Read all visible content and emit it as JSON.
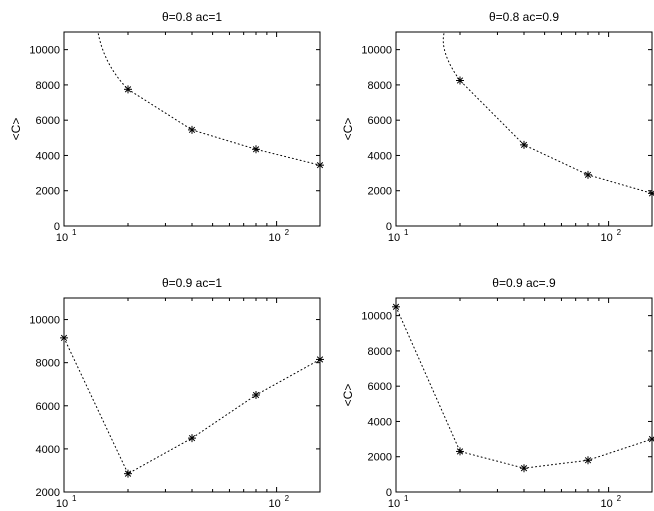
{
  "chart_data": [
    {
      "type": "scatter",
      "title": "θ=0.8 ac=1",
      "ylabel": "<C>",
      "xlabel": "",
      "xscale": "log",
      "xlim": [
        10,
        160
      ],
      "ylim": [
        0,
        11000
      ],
      "yticks": [
        0,
        2000,
        4000,
        6000,
        8000,
        10000
      ],
      "xtick_labels": [
        {
          "value": 10,
          "base": "10",
          "exp": "1"
        },
        {
          "value": 100,
          "base": "10",
          "exp": "2"
        }
      ],
      "series": [
        {
          "style": "dotted line with asterisk markers",
          "x": [
            20,
            40,
            80,
            160
          ],
          "y": [
            7750,
            5450,
            4350,
            3450
          ],
          "curve_start": {
            "x": 14.5,
            "y": 10900
          }
        }
      ]
    },
    {
      "type": "scatter",
      "title": "θ=0.8 ac=0.9",
      "ylabel": "<C>",
      "xlabel": "",
      "xscale": "log",
      "xlim": [
        10,
        160
      ],
      "ylim": [
        0,
        11000
      ],
      "yticks": [
        0,
        2000,
        4000,
        6000,
        8000,
        10000
      ],
      "xtick_labels": [
        {
          "value": 10,
          "base": "10",
          "exp": "1"
        },
        {
          "value": 100,
          "base": "10",
          "exp": "2"
        }
      ],
      "series": [
        {
          "style": "dotted line with asterisk markers",
          "x": [
            20,
            40,
            80,
            160
          ],
          "y": [
            8250,
            4600,
            2900,
            1850
          ],
          "curve_start": {
            "x": 16.8,
            "y": 10900
          }
        }
      ]
    },
    {
      "type": "scatter",
      "title": "θ=0.9 ac=1",
      "ylabel": "",
      "xlabel": "",
      "xscale": "log",
      "xlim": [
        10,
        160
      ],
      "ylim": [
        2000,
        11000
      ],
      "yticks": [
        2000,
        4000,
        6000,
        8000,
        10000
      ],
      "xtick_labels": [
        {
          "value": 10,
          "base": "10",
          "exp": "1"
        },
        {
          "value": 100,
          "base": "10",
          "exp": "2"
        }
      ],
      "series": [
        {
          "style": "dotted line with asterisk markers",
          "x": [
            10,
            20,
            40,
            80,
            160
          ],
          "y": [
            9150,
            2850,
            4500,
            6500,
            8150
          ]
        }
      ]
    },
    {
      "type": "scatter",
      "title": "θ=0.9 ac=.9",
      "ylabel": "<C>",
      "xlabel": "",
      "xscale": "log",
      "xlim": [
        10,
        160
      ],
      "ylim": [
        0,
        11000
      ],
      "yticks": [
        0,
        2000,
        4000,
        6000,
        8000,
        10000
      ],
      "xtick_labels": [
        {
          "value": 10,
          "base": "10",
          "exp": "1"
        },
        {
          "value": 100,
          "base": "10",
          "exp": "2"
        }
      ],
      "series": [
        {
          "style": "dotted line with asterisk markers",
          "x": [
            10,
            20,
            40,
            80,
            160
          ],
          "y": [
            10500,
            2300,
            1350,
            1800,
            3000
          ]
        }
      ]
    }
  ],
  "colors": {
    "axes": "#000000",
    "line": "#000000",
    "marker": "#000000",
    "background": "#ffffff"
  },
  "panels": [
    {
      "title": "θ=0.8 ac=1",
      "ylabel": "<C>"
    },
    {
      "title": "θ=0.8 ac=0.9",
      "ylabel": "<C>"
    },
    {
      "title": "θ=0.9 ac=1",
      "ylabel": ""
    },
    {
      "title": "θ=0.9 ac=.9",
      "ylabel": "<C>"
    }
  ]
}
